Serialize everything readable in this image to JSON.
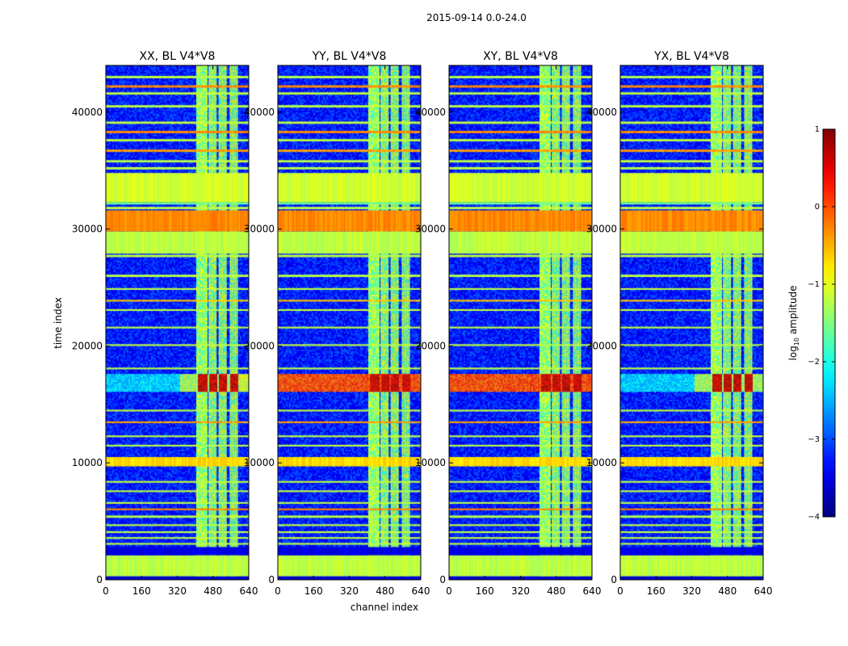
{
  "figure": {
    "suptitle": "2015-09-14 0.0-24.0"
  },
  "chart_data": {
    "type": "heatmap",
    "suptitle": "2015-09-14 0.0-24.0",
    "xlabel": "channel index",
    "ylabel": "time index",
    "xlim": [
      0,
      640
    ],
    "ylim": [
      0,
      44000
    ],
    "xticks": [
      0,
      160,
      320,
      480,
      640
    ],
    "yticks": [
      0,
      10000,
      20000,
      30000,
      40000
    ],
    "xtick_labels": [
      "0",
      "160",
      "320",
      "480",
      "640"
    ],
    "ytick_labels": [
      "0",
      "10000",
      "20000",
      "30000",
      "40000"
    ],
    "panels": [
      {
        "title": "XX, BL V4*V8",
        "flare_span": [
          405,
          600
        ],
        "flare_full_width": false
      },
      {
        "title": "YY, BL V4*V8",
        "flare_span": [
          405,
          640
        ],
        "flare_full_width": true
      },
      {
        "title": "XY, BL V4*V8",
        "flare_span": [
          405,
          640
        ],
        "flare_full_width": true
      },
      {
        "title": "YX, BL V4*V8",
        "flare_span": [
          405,
          640
        ],
        "flare_full_width": false
      }
    ],
    "band_channels": [
      [
        405,
        455
      ],
      [
        460,
        495
      ],
      [
        505,
        540
      ],
      [
        555,
        590
      ]
    ],
    "rows": [
      {
        "t": [
          0,
          300
        ],
        "level": -3.6
      },
      {
        "t": [
          300,
          2100
        ],
        "level": -1.2
      },
      {
        "t": [
          2100,
          2800
        ],
        "level": -3.5
      },
      {
        "t": [
          3000,
          3150
        ],
        "level": -1.2
      },
      {
        "t": [
          3500,
          3650
        ],
        "level": -1.2
      },
      {
        "t": [
          4000,
          4150
        ],
        "level": -1.2
      },
      {
        "t": [
          4600,
          4750
        ],
        "level": -1.2
      },
      {
        "t": [
          5300,
          5500
        ],
        "level": -1.2
      },
      {
        "t": [
          5950,
          6100
        ],
        "level": -0.3
      },
      {
        "t": [
          6500,
          6650
        ],
        "level": -1.2
      },
      {
        "t": [
          7500,
          7650
        ],
        "level": -1.2
      },
      {
        "t": [
          8300,
          8450
        ],
        "level": -1.2
      },
      {
        "t": [
          9700,
          10500
        ],
        "level": -0.7
      },
      {
        "t": [
          11400,
          11550
        ],
        "level": -1.2
      },
      {
        "t": [
          12200,
          12350
        ],
        "level": -1.2
      },
      {
        "t": [
          13400,
          13550
        ],
        "level": -0.4
      },
      {
        "t": [
          14400,
          14550
        ],
        "level": -1.2
      },
      {
        "t": [
          16100,
          17600
        ],
        "level": -2.0,
        "flare": true
      },
      {
        "t": [
          18000,
          18150
        ],
        "level": -1.2
      },
      {
        "t": [
          20000,
          20150
        ],
        "level": -1.2
      },
      {
        "t": [
          21500,
          21650
        ],
        "level": -1.2
      },
      {
        "t": [
          23000,
          23150
        ],
        "level": -1.2
      },
      {
        "t": [
          23800,
          23950
        ],
        "level": -0.6
      },
      {
        "t": [
          24800,
          24950
        ],
        "level": -1.2
      },
      {
        "t": [
          25900,
          26100
        ],
        "level": -1.2
      },
      {
        "t": [
          27600,
          27800
        ],
        "level": -1.2
      },
      {
        "t": [
          27900,
          29800
        ],
        "level": -1.2
      },
      {
        "t": [
          29800,
          31600
        ],
        "level": -0.3
      },
      {
        "t": [
          31700,
          31900
        ],
        "level": -1.2
      },
      {
        "t": [
          32100,
          32300
        ],
        "level": -1.6
      },
      {
        "t": [
          32300,
          34800
        ],
        "level": -1.1
      },
      {
        "t": [
          35100,
          35300
        ],
        "level": -1.2
      },
      {
        "t": [
          35700,
          35900
        ],
        "level": -1.2
      },
      {
        "t": [
          36600,
          36800
        ],
        "level": -0.4
      },
      {
        "t": [
          37500,
          37700
        ],
        "level": -1.2
      },
      {
        "t": [
          38200,
          38400
        ],
        "level": -0.3
      },
      {
        "t": [
          39000,
          39200
        ],
        "level": -1.2
      },
      {
        "t": [
          40400,
          40600
        ],
        "level": -1.2
      },
      {
        "t": [
          41500,
          41700
        ],
        "level": -1.2
      },
      {
        "t": [
          42100,
          42300
        ],
        "level": -0.3
      },
      {
        "t": [
          42900,
          43100
        ],
        "level": -1.2
      }
    ],
    "colorbar": {
      "label": "log₁₀ amplitude",
      "label_base": "log",
      "label_sub": "10",
      "label_rest": " amplitude",
      "range": [
        -4,
        1
      ],
      "ticks": [
        1,
        0,
        -1,
        -2,
        -3,
        -4
      ],
      "tick_labels": [
        "1",
        "0",
        "−1",
        "−2",
        "−3",
        "−4"
      ],
      "colormap": "jet"
    }
  }
}
